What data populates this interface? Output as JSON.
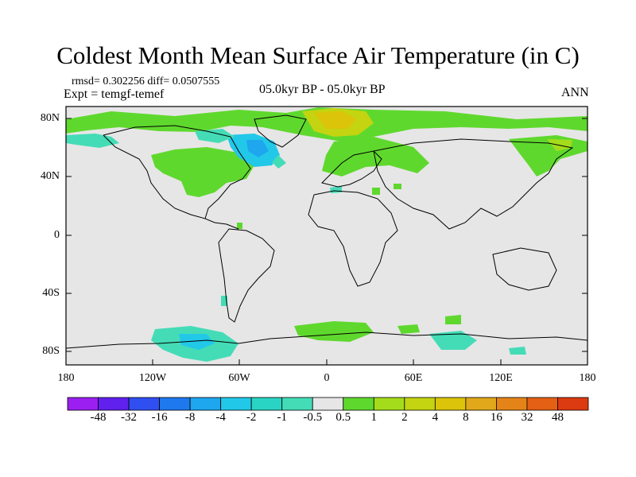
{
  "title": "Coldest Month Mean Surface Air Temperature (in C)",
  "stats_line": "rmsd= 0.302256  diff= 0.0507555",
  "experiment_line": "Expt = temgf-temef",
  "period_line": "05.0kyr BP - 05.0kyr BP",
  "season": "ANN",
  "lat_labels": [
    "80N",
    "40N",
    "0",
    "40S",
    "80S"
  ],
  "lon_labels": [
    "180",
    "120W",
    "60W",
    "0",
    "60E",
    "120E",
    "180"
  ],
  "colorbar": {
    "colors": [
      "#9b1ff0",
      "#6020ee",
      "#2f4ff0",
      "#1e78ee",
      "#1ea6ee",
      "#22c8e8",
      "#2ad4c4",
      "#44dcb6",
      "#e6e6e6",
      "#5fd82e",
      "#a4dc1c",
      "#c4d410",
      "#dcc40a",
      "#e0a81a",
      "#e48418",
      "#e46014",
      "#dc3a10"
    ],
    "labels": [
      "-48",
      "-32",
      "-16",
      "-8",
      "-4",
      "-2",
      "-1",
      "-0.5",
      "0.5",
      "1",
      "2",
      "4",
      "8",
      "16",
      "32",
      "48"
    ]
  },
  "legend_colors": {
    "neutral": "#e6e6e6",
    "warm_slight": "#5fd82e",
    "warm_moderate": "#a4dc1c",
    "warm_strong": "#c4d410",
    "cool_slight": "#44dcb6",
    "cool_moderate": "#22c8e8"
  }
}
